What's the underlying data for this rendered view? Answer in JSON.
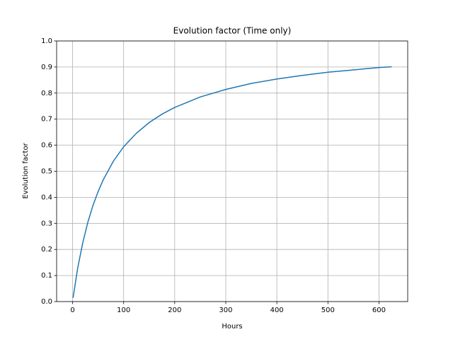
{
  "chart_data": {
    "type": "line",
    "title": "Evolution factor (Time only)",
    "x_label": "Hours",
    "y_label": "Evolution factor",
    "x": [
      1,
      10,
      20,
      30,
      40,
      50,
      60,
      80,
      100,
      125,
      150,
      175,
      200,
      250,
      300,
      350,
      400,
      450,
      500,
      550,
      600,
      625
    ],
    "series": [
      {
        "color": "#1f77b4",
        "values": [
          0.0144,
          0.128,
          0.226,
          0.305,
          0.369,
          0.422,
          0.467,
          0.539,
          0.594,
          0.646,
          0.687,
          0.719,
          0.745,
          0.785,
          0.814,
          0.837,
          0.854,
          0.868,
          0.88,
          0.889,
          0.898,
          0.901
        ]
      }
    ],
    "xlim": [
      -31.2,
      656.2
    ],
    "xticks": [
      0,
      100,
      200,
      300,
      400,
      500,
      600
    ],
    "ylim": [
      0,
      1
    ],
    "yticks": [
      {
        "value": 0,
        "label": "0.0"
      },
      0.1,
      0.2,
      0.3,
      0.4,
      0.5,
      0.6,
      0.7,
      0.8,
      0.9,
      {
        "value": 1,
        "label": "1.0"
      }
    ],
    "grid": true
  }
}
